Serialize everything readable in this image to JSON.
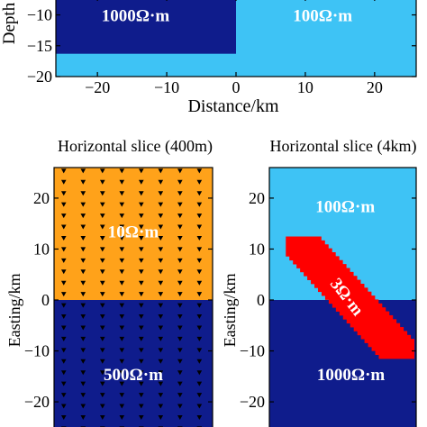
{
  "colors": {
    "high": "#0f1c8c",
    "mid": "#3ec3f5",
    "top": "#ffa21a",
    "anomaly": "#ff0000",
    "axis": "#000000",
    "resistivity_label": "#ffffff"
  },
  "cross_section": {
    "xlabel": "Distance/km",
    "ylabel": "Depth",
    "x_range": [
      -26,
      26
    ],
    "y_range": [
      -20,
      -7
    ],
    "x_ticks": [
      -20,
      -10,
      0,
      10,
      20
    ],
    "y_ticks": [
      -10,
      -15,
      -20
    ],
    "block": {
      "x_range": [
        -26,
        0
      ],
      "y_range": [
        -16.3,
        -7
      ],
      "color": "high"
    },
    "background_color": "mid",
    "labels": [
      {
        "text": "1000Ω·m",
        "x": -14.5,
        "y": -10
      },
      {
        "text": "100Ω·m",
        "x": 12.5,
        "y": -10
      }
    ]
  },
  "slice_400m": {
    "title": "Horizontal slice (400m)",
    "ylabel": "Easting/km",
    "x_range": [
      -9,
      9
    ],
    "y_range": [
      -26,
      26
    ],
    "y_ticks": [
      20,
      10,
      0,
      -10,
      -20
    ],
    "boundary_y": 0,
    "top_color": "top",
    "bottom_color": "high",
    "station_marker": "down-triangle",
    "station_spacing_km": 2.2,
    "labels": [
      {
        "text": "10Ω·m",
        "x": 0,
        "y": 13.5
      },
      {
        "text": "500Ω·m",
        "x": 0,
        "y": -14.5
      }
    ]
  },
  "slice_4km": {
    "title": "Horizontal slice (4km)",
    "ylabel": "Easting/km",
    "x_range": [
      -9,
      9
    ],
    "y_range": [
      -26,
      26
    ],
    "y_ticks": [
      20,
      10,
      0,
      -10,
      -20
    ],
    "boundary_y": 0,
    "top_color": "mid",
    "bottom_color": "high",
    "anomaly": {
      "start": [
        -4.8,
        10.5
      ],
      "end": [
        6.6,
        -9.6
      ],
      "width_km": 2.8,
      "color": "anomaly",
      "label": "3Ω·m",
      "label_pos": [
        0.5,
        0.6
      ]
    },
    "labels": [
      {
        "text": "100Ω·m",
        "x": 0.3,
        "y": 18.5
      },
      {
        "text": "1000Ω·m",
        "x": 1.0,
        "y": -14.5
      }
    ]
  }
}
